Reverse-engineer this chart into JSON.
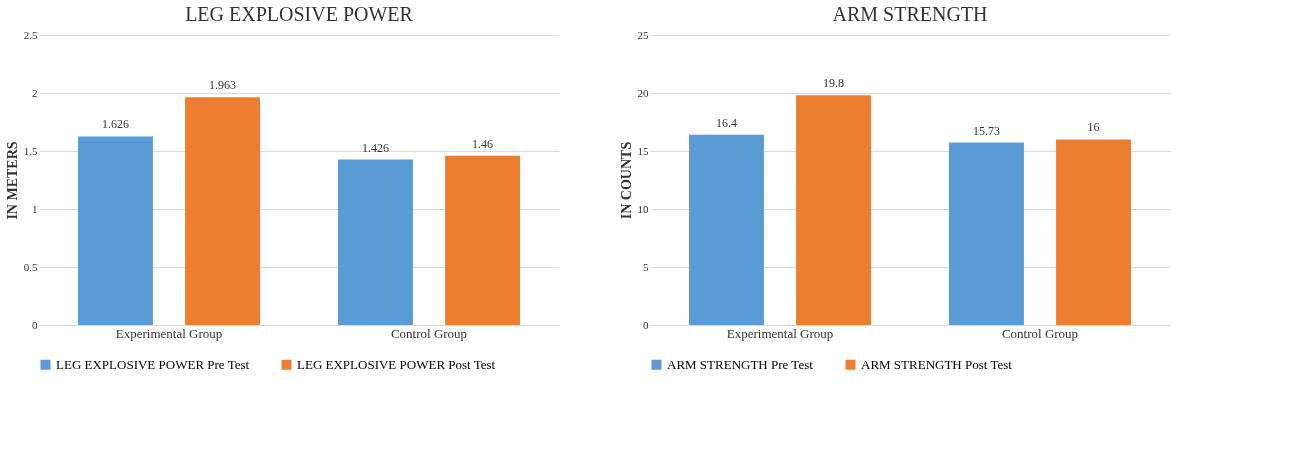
{
  "chart_data": [
    {
      "type": "bar",
      "title": "LEG EXPLOSIVE POWER",
      "ylabel": "IN METERS",
      "categories": [
        "Experimental Group",
        "Control Group"
      ],
      "series": [
        {
          "name": "LEG EXPLOSIVE POWER Pre Test",
          "color": "#5b9bd5",
          "values": [
            1.626,
            1.426
          ]
        },
        {
          "name": "LEG EXPLOSIVE POWER Post Test",
          "color": "#ed7d31",
          "values": [
            1.963,
            1.46
          ]
        }
      ],
      "ylim": [
        0,
        2.5
      ],
      "yticks": [
        0,
        0.5,
        1,
        1.5,
        2,
        2.5
      ],
      "grid": "y",
      "legend": "bottom",
      "data_labels": true
    },
    {
      "type": "bar",
      "title": "ARM STRENGTH",
      "ylabel": "IN COUNTS",
      "categories": [
        "Experimental Group",
        "Control Group"
      ],
      "series": [
        {
          "name": "ARM STRENGTH Pre Test",
          "color": "#5b9bd5",
          "values": [
            16.4,
            15.73
          ]
        },
        {
          "name": "ARM STRENGTH Post Test",
          "color": "#ed7d31",
          "values": [
            19.8,
            16
          ]
        }
      ],
      "ylim": [
        0,
        25
      ],
      "yticks": [
        0,
        5,
        10,
        15,
        20,
        25
      ],
      "grid": "y",
      "legend": "bottom",
      "data_labels": true
    }
  ]
}
